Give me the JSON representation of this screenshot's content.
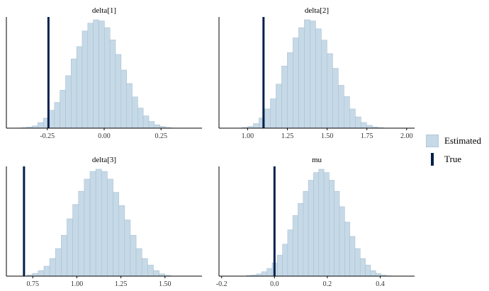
{
  "legend": {
    "estimated_label": "Estimated",
    "true_label": "True"
  },
  "colors": {
    "bar_fill": "#c6d9e7",
    "bar_stroke": "#a9c0d3",
    "true_line": "#011f4b",
    "axis": "#000000"
  },
  "chart_data": [
    {
      "type": "bar",
      "title": "delta[1]",
      "xlim": [
        -0.43,
        0.43
      ],
      "ticks": [
        -0.25,
        0.0,
        0.25
      ],
      "tick_labels": [
        "-0.25",
        "0.00",
        "0.25"
      ],
      "true_value": -0.245,
      "bins_start": -0.365,
      "bin_width": 0.0244,
      "counts": [
        0.4,
        1,
        2,
        5,
        9,
        16,
        23,
        34,
        47,
        62,
        73,
        87,
        94,
        97,
        96,
        90,
        79,
        66,
        52,
        40,
        28,
        18,
        11,
        6,
        3,
        1.5,
        0.5
      ]
    },
    {
      "type": "bar",
      "title": "delta[2]",
      "xlim": [
        0.82,
        2.05
      ],
      "ticks": [
        1.0,
        1.25,
        1.5,
        1.75,
        2.0
      ],
      "tick_labels": [
        "1.00",
        "1.25",
        "1.50",
        "1.75",
        "2.00"
      ],
      "true_value": 1.1,
      "bins_start": 0.965,
      "bin_width": 0.0356,
      "counts": [
        0.5,
        1.5,
        4,
        9,
        17,
        26,
        39,
        55,
        67,
        80,
        89,
        96,
        95,
        88,
        78,
        66,
        53,
        38,
        28,
        17,
        10,
        5,
        2.5,
        1,
        0.4
      ]
    },
    {
      "type": "bar",
      "title": "delta[3]",
      "xlim": [
        0.6,
        1.71
      ],
      "ticks": [
        0.75,
        1.0,
        1.25,
        1.5
      ],
      "tick_labels": [
        "0.75",
        "1.00",
        "1.25",
        "1.50"
      ],
      "true_value": 0.7,
      "bins_start": 0.715,
      "bin_width": 0.0327,
      "counts": [
        1,
        2.5,
        5,
        9,
        16,
        25,
        37,
        52,
        65,
        77,
        88,
        95,
        97,
        95,
        88,
        76,
        64,
        51,
        37,
        25,
        16,
        10,
        5,
        2,
        0.5
      ]
    },
    {
      "type": "bar",
      "title": "mu",
      "xlim": [
        -0.21,
        0.53
      ],
      "ticks": [
        -0.2,
        0.0,
        0.2,
        0.4
      ],
      "tick_labels": [
        "-0.2",
        "0.0",
        "0.2",
        "0.4"
      ],
      "true_value": 0.0,
      "bins_start": -0.107,
      "bin_width": 0.0196,
      "counts": [
        0.5,
        1,
        2,
        4,
        7,
        12,
        19,
        29,
        42,
        55,
        66,
        77,
        87,
        94,
        97,
        94,
        87,
        77,
        63,
        49,
        36,
        25,
        16,
        10,
        5,
        2.5,
        1,
        0.3
      ]
    }
  ]
}
